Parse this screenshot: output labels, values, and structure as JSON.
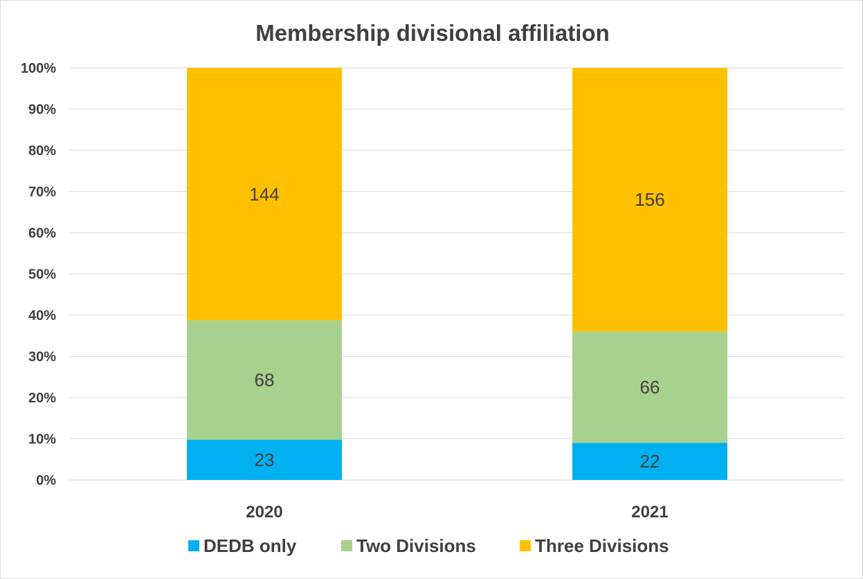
{
  "chart_data": {
    "type": "bar",
    "stacked": "percent",
    "title": "Membership divisional affiliation",
    "xlabel": "",
    "ylabel": "",
    "categories": [
      "2020",
      "2021"
    ],
    "series": [
      {
        "name": "DEDB only",
        "values": [
          23,
          22
        ],
        "color": "#00b0f0"
      },
      {
        "name": "Two Divisions",
        "values": [
          68,
          66
        ],
        "color": "#a9d18e"
      },
      {
        "name": "Three Divisions",
        "values": [
          144,
          156
        ],
        "color": "#ffc000"
      }
    ],
    "ylim": [
      0,
      1
    ],
    "yticks": [
      "0%",
      "10%",
      "20%",
      "30%",
      "40%",
      "50%",
      "60%",
      "70%",
      "80%",
      "90%",
      "100%"
    ],
    "grid": true,
    "legend_position": "bottom"
  }
}
